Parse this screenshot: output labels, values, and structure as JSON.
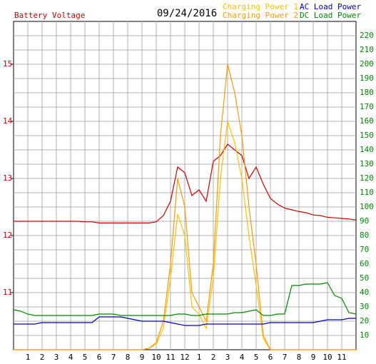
{
  "chart_data": {
    "type": "line",
    "title": "09/24/2016",
    "x": [
      0,
      0.5,
      1,
      1.5,
      2,
      2.5,
      3,
      3.5,
      4,
      4.5,
      5,
      5.5,
      6,
      6.5,
      7,
      7.5,
      8,
      8.5,
      9,
      9.5,
      10,
      10.5,
      11,
      11.5,
      12,
      12.5,
      13,
      13.5,
      14,
      14.5,
      15,
      15.5,
      16,
      16.5,
      17,
      17.5,
      18,
      18.5,
      19,
      19.5,
      20,
      20.5,
      21,
      21.5,
      22,
      22.5,
      23,
      23.5,
      24
    ],
    "xlim": [
      0,
      24
    ],
    "xticks": [
      1,
      2,
      3,
      4,
      5,
      6,
      7,
      8,
      9,
      10,
      11,
      12,
      {
        "value": 13,
        "label": "1"
      },
      {
        "value": 14,
        "label": "2"
      },
      {
        "value": 15,
        "label": "3"
      },
      {
        "value": 16,
        "label": "4"
      },
      {
        "value": 17,
        "label": "5"
      },
      {
        "value": 18,
        "label": "6"
      },
      {
        "value": 19,
        "label": "7"
      },
      {
        "value": 20,
        "label": "8"
      },
      {
        "value": 21,
        "label": "9"
      },
      {
        "value": 22,
        "label": "10"
      },
      {
        "value": 23,
        "label": "11"
      }
    ],
    "ylim": [
      10,
      15.75
    ],
    "yticks": [
      11,
      12,
      13,
      14,
      15
    ],
    "y2lim": [
      0,
      230
    ],
    "y2ticks": [
      10,
      20,
      30,
      40,
      50,
      60,
      70,
      80,
      90,
      100,
      110,
      120,
      130,
      140,
      150,
      160,
      170,
      180,
      190,
      200,
      210,
      220
    ],
    "grid": true,
    "series": [
      {
        "name": "Battery Voltage",
        "color": "#cc0000",
        "axis": "y",
        "values": [
          12.25,
          12.25,
          12.25,
          12.25,
          12.25,
          12.25,
          12.25,
          12.25,
          12.25,
          12.25,
          12.24,
          12.24,
          12.22,
          12.22,
          12.22,
          12.22,
          12.22,
          12.22,
          12.22,
          12.22,
          12.24,
          12.35,
          12.6,
          13.2,
          13.1,
          12.7,
          12.8,
          12.6,
          13.3,
          13.4,
          13.6,
          13.5,
          13.4,
          13.0,
          13.2,
          12.9,
          12.65,
          12.55,
          12.48,
          12.45,
          12.42,
          12.4,
          12.36,
          12.35,
          12.32,
          12.31,
          12.3,
          12.29,
          12.27
        ]
      },
      {
        "name": "Charging Power 1",
        "color": "#ffc000",
        "axis": "y2",
        "values": [
          0,
          0,
          0,
          0,
          0,
          0,
          0,
          0,
          0,
          0,
          0,
          0,
          0,
          0,
          0,
          0,
          0,
          0,
          0,
          1,
          4,
          15,
          50,
          95,
          80,
          30,
          25,
          15,
          50,
          120,
          160,
          145,
          120,
          80,
          45,
          8,
          0,
          0,
          0,
          0,
          0,
          0,
          0,
          0,
          0,
          0,
          0,
          0,
          0
        ]
      },
      {
        "name": "Charging Power 2",
        "color": "#ff9900",
        "axis": "y2",
        "values": [
          0,
          0,
          0,
          0,
          0,
          0,
          0,
          0,
          0,
          0,
          0,
          0,
          0,
          0,
          0,
          0,
          0,
          0,
          0,
          1,
          5,
          20,
          60,
          120,
          100,
          40,
          30,
          20,
          60,
          150,
          200,
          180,
          150,
          100,
          60,
          10,
          0,
          0,
          0,
          0,
          0,
          0,
          0,
          0,
          0,
          0,
          0,
          0,
          0
        ]
      },
      {
        "name": "AC Load Power",
        "color": "#0000cc",
        "axis": "y2",
        "values": [
          18,
          18,
          18,
          18,
          19,
          19,
          19,
          19,
          19,
          19,
          19,
          19,
          23,
          23,
          23,
          23,
          22,
          21,
          20,
          20,
          20,
          20,
          19,
          18,
          17,
          17,
          17,
          18,
          18,
          18,
          18,
          18,
          18,
          18,
          18,
          18,
          19,
          19,
          19,
          19,
          19,
          19,
          19,
          20,
          21,
          21,
          21,
          22,
          22
        ]
      },
      {
        "name": "DC Load Power",
        "color": "#008800",
        "axis": "y2",
        "values": [
          28,
          27,
          25,
          24,
          24,
          24,
          24,
          24,
          24,
          24,
          24,
          24,
          25,
          25,
          25,
          24,
          24,
          24,
          24,
          24,
          24,
          24,
          24,
          25,
          25,
          24,
          24,
          25,
          25,
          25,
          25,
          26,
          26,
          27,
          28,
          24,
          24,
          25,
          25,
          45,
          45,
          46,
          46,
          46,
          47,
          38,
          36,
          26,
          25
        ]
      }
    ]
  }
}
